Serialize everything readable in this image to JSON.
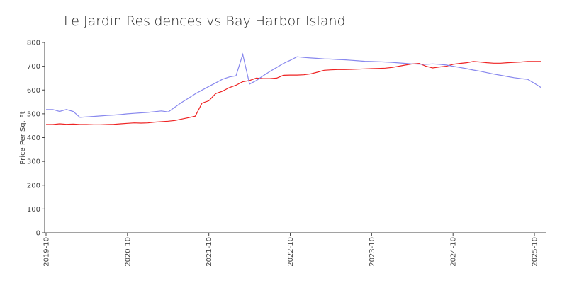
{
  "chart_data": {
    "type": "line",
    "title": "Le Jardin Residences vs Bay Harbor Island",
    "y_label": "Price Per Sq. Ft",
    "x": [
      "2019-10",
      "2019-11",
      "2019-12",
      "2020-01",
      "2020-02",
      "2020-03",
      "2020-04",
      "2020-05",
      "2020-06",
      "2020-07",
      "2020-08",
      "2020-09",
      "2020-10",
      "2020-11",
      "2020-12",
      "2021-01",
      "2021-02",
      "2021-03",
      "2021-04",
      "2021-05",
      "2021-06",
      "2021-07",
      "2021-08",
      "2021-09",
      "2021-10",
      "2021-11",
      "2021-12",
      "2022-01",
      "2022-02",
      "2022-03",
      "2022-04",
      "2022-05",
      "2022-06",
      "2022-07",
      "2022-08",
      "2022-09",
      "2022-10",
      "2022-11",
      "2022-12",
      "2023-01",
      "2023-02",
      "2023-03",
      "2023-04",
      "2023-05",
      "2023-06",
      "2023-07",
      "2023-08",
      "2023-09",
      "2023-10",
      "2023-11",
      "2023-12",
      "2024-01",
      "2024-02",
      "2024-03",
      "2024-04",
      "2024-05",
      "2024-06",
      "2024-07",
      "2024-08",
      "2024-09",
      "2024-10",
      "2024-11",
      "2024-12",
      "2025-01",
      "2025-02",
      "2025-03",
      "2025-04",
      "2025-05",
      "2025-06",
      "2025-07",
      "2025-08",
      "2025-09",
      "2025-10",
      "2025-11"
    ],
    "series": [
      {
        "color": "#ee2222",
        "values": [
          455,
          455,
          458,
          456,
          457,
          455,
          455,
          454,
          454,
          455,
          456,
          458,
          460,
          462,
          461,
          462,
          465,
          467,
          469,
          472,
          478,
          484,
          490,
          545,
          555,
          585,
          595,
          610,
          620,
          635,
          640,
          650,
          648,
          648,
          650,
          662,
          663,
          663,
          664,
          668,
          675,
          683,
          685,
          686,
          686,
          687,
          688,
          689,
          690,
          691,
          692,
          695,
          700,
          705,
          710,
          712,
          700,
          693,
          697,
          700,
          708,
          712,
          715,
          720,
          718,
          715,
          713,
          713,
          715,
          716,
          718,
          720,
          720,
          720
        ]
      },
      {
        "color": "#8888ee",
        "values": [
          518,
          518,
          510,
          518,
          510,
          485,
          487,
          489,
          491,
          493,
          495,
          497,
          500,
          502,
          504,
          506,
          509,
          512,
          508,
          528,
          548,
          566,
          584,
          600,
          615,
          630,
          645,
          655,
          660,
          750,
          625,
          640,
          660,
          678,
          695,
          712,
          725,
          740,
          737,
          735,
          733,
          731,
          730,
          728,
          727,
          725,
          723,
          721,
          720,
          719,
          718,
          716,
          714,
          712,
          710,
          709,
          708,
          710,
          708,
          705,
          700,
          695,
          690,
          684,
          679,
          673,
          667,
          662,
          657,
          652,
          648,
          645,
          628,
          610
        ]
      }
    ],
    "xticks": [
      "2019-10",
      "2020-10",
      "2021-10",
      "2022-10",
      "2023-10",
      "2024-10",
      "2025-10"
    ],
    "ylim": [
      0,
      800
    ],
    "yticks": [
      0,
      100,
      200,
      300,
      400,
      500,
      600,
      700,
      800
    ]
  }
}
